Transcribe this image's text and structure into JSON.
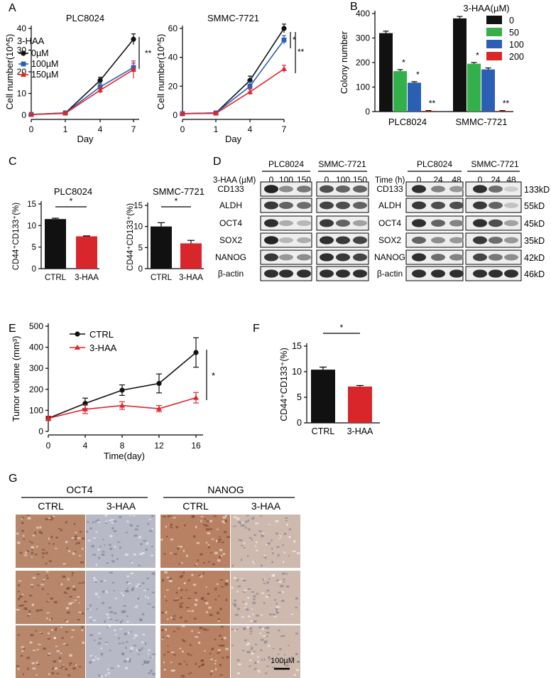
{
  "colors": {
    "black": "#111111",
    "blue": "#2b5fb4",
    "red": "#e0262c",
    "green": "#33b04a",
    "redbar": "#d9262a"
  },
  "panels": {
    "A": "A",
    "B": "B",
    "C": "C",
    "D": "D",
    "E": "E",
    "F": "F",
    "G": "G"
  },
  "chart_data": [
    {
      "id": "A1",
      "type": "line",
      "title": "PLC8024",
      "xlabel": "Day",
      "ylabel": "Cell number(10^5)",
      "x": [
        0,
        1,
        4,
        7
      ],
      "xticks": [
        "0",
        "1",
        "4",
        "7"
      ],
      "ylim": [
        0,
        40
      ],
      "yticks": [
        "0",
        "10",
        "20",
        "30",
        "40"
      ],
      "legend_title": "3-HAA",
      "series": [
        {
          "name": "0µM",
          "values": [
            0.3,
            1,
            16,
            35
          ],
          "err": [
            0.3,
            0.5,
            1.5,
            2.5
          ],
          "color": "#111111",
          "marker": "circle"
        },
        {
          "name": "100µM",
          "values": [
            0.3,
            1,
            13,
            22
          ],
          "err": [
            0.3,
            0.5,
            1.5,
            2
          ],
          "color": "#2b5fb4",
          "marker": "square"
        },
        {
          "name": "150µM",
          "values": [
            0.3,
            0.8,
            11.5,
            21
          ],
          "err": [
            0.3,
            0.4,
            1.5,
            4
          ],
          "color": "#e0262c",
          "marker": "triangle"
        }
      ],
      "significance": [
        "**"
      ]
    },
    {
      "id": "A2",
      "type": "line",
      "title": "SMMC-7721",
      "xlabel": "Day",
      "ylabel": "Cell number(10^5)",
      "x": [
        0,
        1,
        4,
        7
      ],
      "xticks": [
        "0",
        "1",
        "4",
        "7"
      ],
      "ylim": [
        0,
        60
      ],
      "yticks": [
        "0",
        "20",
        "40",
        "60"
      ],
      "series": [
        {
          "values": [
            1,
            1.5,
            24,
            60
          ],
          "err": [
            0.5,
            0.5,
            3,
            3
          ],
          "color": "#111111",
          "marker": "circle"
        },
        {
          "values": [
            1,
            1.5,
            20,
            52
          ],
          "err": [
            0.5,
            0.5,
            3,
            3
          ],
          "color": "#2b5fb4",
          "marker": "square"
        },
        {
          "values": [
            1,
            1.2,
            16,
            32
          ],
          "err": [
            0.5,
            0.5,
            2,
            2.5
          ],
          "color": "#e0262c",
          "marker": "triangle"
        }
      ],
      "significance": [
        "*",
        "**"
      ]
    },
    {
      "id": "B",
      "type": "bar",
      "ylabel": "Colony number",
      "categories": [
        "PLC8024",
        "SMMC-7721"
      ],
      "ylim": [
        0,
        400
      ],
      "yticks": [
        "0",
        "100",
        "200",
        "300",
        "400"
      ],
      "legend_title": "3-HAA(µM)",
      "series": [
        {
          "name": "0",
          "values": [
            320,
            380
          ],
          "err": [
            8,
            8
          ],
          "color": "#111111"
        },
        {
          "name": "50",
          "values": [
            165,
            195
          ],
          "err": [
            6,
            5
          ],
          "color": "#33b04a"
        },
        {
          "name": "100",
          "values": [
            118,
            172
          ],
          "err": [
            4,
            6
          ],
          "color": "#2b5fb4"
        },
        {
          "name": "200",
          "values": [
            3,
            3
          ],
          "err": [
            1,
            1
          ],
          "color": "#d9262a"
        }
      ],
      "significance": [
        [
          "",
          "*",
          "*",
          "**"
        ],
        [
          "",
          "*",
          "*",
          "**"
        ]
      ]
    },
    {
      "id": "C1",
      "type": "bar",
      "title": "PLC8024",
      "ylabel": "CD44⁺CD133⁺(%)",
      "categories": [
        "CTRL",
        "3-HAA"
      ],
      "values": [
        11.5,
        7.5
      ],
      "err": [
        0.2,
        0.1
      ],
      "ylim": [
        0,
        15
      ],
      "yticks": [
        "0",
        "5",
        "10",
        "15"
      ],
      "significance": "*"
    },
    {
      "id": "C2",
      "type": "bar",
      "title": "SMMC-7721",
      "ylabel": "CD44⁺CD133⁺(%)",
      "categories": [
        "CTRL",
        "3-HAA"
      ],
      "values": [
        10,
        6
      ],
      "err": [
        0.9,
        0.7
      ],
      "ylim": [
        0,
        15
      ],
      "yticks": [
        "0",
        "5",
        "10",
        "15"
      ],
      "significance": "*"
    },
    {
      "id": "E",
      "type": "line",
      "xlabel": "Time(day)",
      "ylabel": "Tumor volume (mm³)",
      "x": [
        0,
        4,
        8,
        12,
        16
      ],
      "xticks": [
        "0",
        "4",
        "8",
        "12",
        "16"
      ],
      "ylim": [
        0,
        500
      ],
      "yticks": [
        "0",
        "100",
        "200",
        "300",
        "400",
        "500"
      ],
      "series": [
        {
          "name": "CTRL",
          "values": [
            62,
            133,
            196,
            228,
            375
          ],
          "err": [
            10,
            25,
            25,
            45,
            70
          ],
          "color": "#111111",
          "marker": "circle"
        },
        {
          "name": "3-HAA",
          "values": [
            62,
            105,
            123,
            108,
            160
          ],
          "err": [
            10,
            20,
            18,
            15,
            25
          ],
          "color": "#e0262c",
          "marker": "triangle"
        }
      ],
      "significance": "*"
    },
    {
      "id": "F",
      "type": "bar",
      "ylabel": "CD44⁺CD133⁺(%)",
      "categories": [
        "CTRL",
        "3-HAA"
      ],
      "values": [
        10.4,
        7.1
      ],
      "err": [
        0.5,
        0.2
      ],
      "ylim": [
        0,
        15
      ],
      "yticks": [
        "0",
        "5",
        "10",
        "15"
      ],
      "significance": "*"
    }
  ],
  "western": {
    "rows": [
      "CD133",
      "ALDH",
      "OCT4",
      "SOX2",
      "NANOG",
      "β-actin"
    ],
    "kd": [
      "133kD",
      "55kD",
      "45kD",
      "35kD",
      "42kD",
      "46kD"
    ],
    "dose": {
      "label": "3-HAA (µM)",
      "lines": [
        "PLC8024",
        "SMMC-7721"
      ],
      "lanes": [
        "0",
        "100",
        "150"
      ],
      "intensity": [
        [
          [
            0.9,
            0.4,
            0.5
          ],
          [
            0.8,
            0.6,
            0.55
          ],
          [
            0.85,
            0.25,
            0.2
          ],
          [
            0.9,
            0.2,
            0.25
          ],
          [
            0.8,
            0.35,
            0.4
          ],
          [
            0.85,
            0.85,
            0.85
          ]
        ],
        [
          [
            0.7,
            0.6,
            0.6
          ],
          [
            0.75,
            0.7,
            0.6
          ],
          [
            0.8,
            0.6,
            0.3
          ],
          [
            0.85,
            0.8,
            0.75
          ],
          [
            0.85,
            0.8,
            0.75
          ],
          [
            0.85,
            0.85,
            0.85
          ]
        ]
      ]
    },
    "time": {
      "label": "Time (h)",
      "lines": [
        "PLC8024",
        "SMMC-7721"
      ],
      "lanes": [
        "0",
        "24",
        "48"
      ],
      "intensity": [
        [
          [
            0.85,
            0.45,
            0.35
          ],
          [
            0.8,
            0.7,
            0.7
          ],
          [
            0.85,
            0.6,
            0.45
          ],
          [
            0.6,
            0.4,
            0.35
          ],
          [
            0.85,
            0.55,
            0.45
          ],
          [
            0.85,
            0.85,
            0.85
          ]
        ],
        [
          [
            0.85,
            0.55,
            0.1
          ],
          [
            0.8,
            0.6,
            0.15
          ],
          [
            0.85,
            0.7,
            0.3
          ],
          [
            0.8,
            0.55,
            0.35
          ],
          [
            0.75,
            0.5,
            0.4
          ],
          [
            0.85,
            0.85,
            0.85
          ]
        ]
      ]
    }
  },
  "ihc": {
    "groups": [
      "OCT4",
      "NANOG"
    ],
    "columns": [
      "CTRL",
      "3-HAA",
      "CTRL",
      "3-HAA"
    ],
    "tones": [
      "#b8866a",
      "#b7b9c6",
      "#b88163",
      "#cdb9ad"
    ],
    "scale_bar": "100µM"
  }
}
